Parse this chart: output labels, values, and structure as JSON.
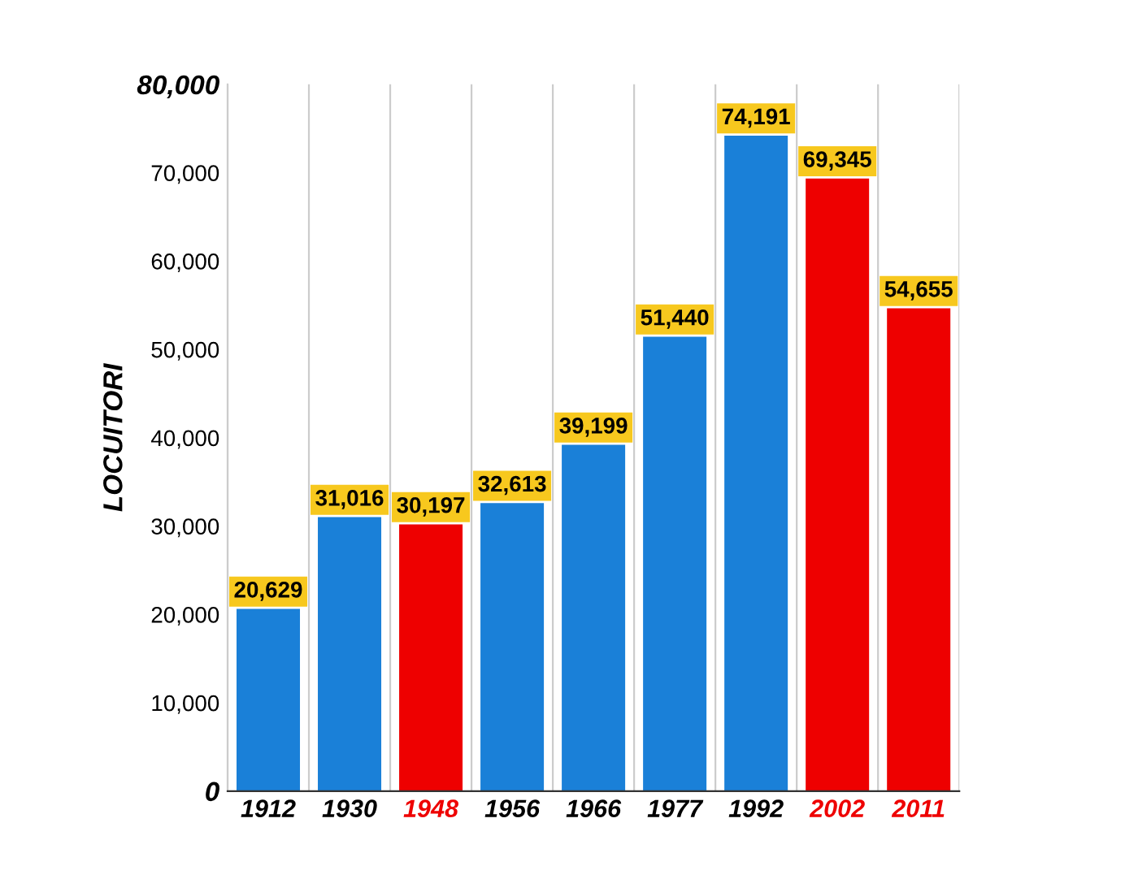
{
  "chart_data": {
    "type": "bar",
    "ylabel": "LOCUITORI",
    "categories": [
      "1912",
      "1930",
      "1948",
      "1956",
      "1966",
      "1977",
      "1992",
      "2002",
      "2011"
    ],
    "values": [
      20629,
      31016,
      30197,
      32613,
      39199,
      51440,
      74191,
      69345,
      54655
    ],
    "colors": [
      "#1a80d8",
      "#1a80d8",
      "#ee0000",
      "#1a80d8",
      "#1a80d8",
      "#1a80d8",
      "#1a80d8",
      "#ee0000",
      "#ee0000"
    ],
    "ylim": [
      0,
      80000
    ],
    "yticks": [
      0,
      {
        "value": 10000,
        "label": "10,000"
      },
      {
        "value": 20000,
        "label": "20,000"
      },
      {
        "value": 30000,
        "label": "30,000"
      },
      {
        "value": 40000,
        "label": "40,000"
      },
      {
        "value": 50000,
        "label": "50,000"
      },
      {
        "value": 60000,
        "label": "60,000"
      },
      {
        "value": 70000,
        "label": "70,000"
      },
      {
        "value": 80000,
        "label": "80,000"
      }
    ],
    "value_labels": [
      "20,629",
      "31,016",
      "30,197",
      "32,613",
      "39,199",
      "51,440",
      "74,191",
      "69,345",
      "54,655"
    ],
    "grid": "x",
    "legend": false
  }
}
